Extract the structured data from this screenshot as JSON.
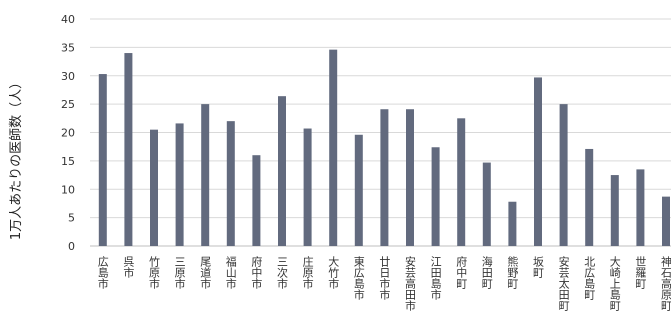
{
  "chart_data": {
    "type": "bar",
    "ylabel": "1万人あたりの医師数（人）",
    "ylim": [
      0,
      40
    ],
    "yticks": [
      0,
      5,
      10,
      15,
      20,
      25,
      30,
      35,
      40
    ],
    "grid": true,
    "bar_color": "#626a7e",
    "categories": [
      "広島市",
      "呉市",
      "竹原市",
      "三原市",
      "尾道市",
      "福山市",
      "府中市",
      "三次市",
      "庄原市",
      "大竹市",
      "東広島市",
      "廿日市市",
      "安芸高田市",
      "江田島市",
      "府中町",
      "海田町",
      "熊野町",
      "坂町",
      "安芸太田町",
      "北広島町",
      "大崎上島町",
      "世羅町",
      "神石高原町"
    ],
    "values": [
      30.3,
      34.0,
      20.5,
      21.6,
      25.0,
      22.0,
      16.0,
      26.4,
      20.7,
      34.6,
      19.6,
      24.1,
      24.1,
      17.4,
      22.5,
      14.7,
      7.8,
      29.7,
      25.0,
      17.1,
      12.5,
      13.5,
      8.7
    ]
  }
}
